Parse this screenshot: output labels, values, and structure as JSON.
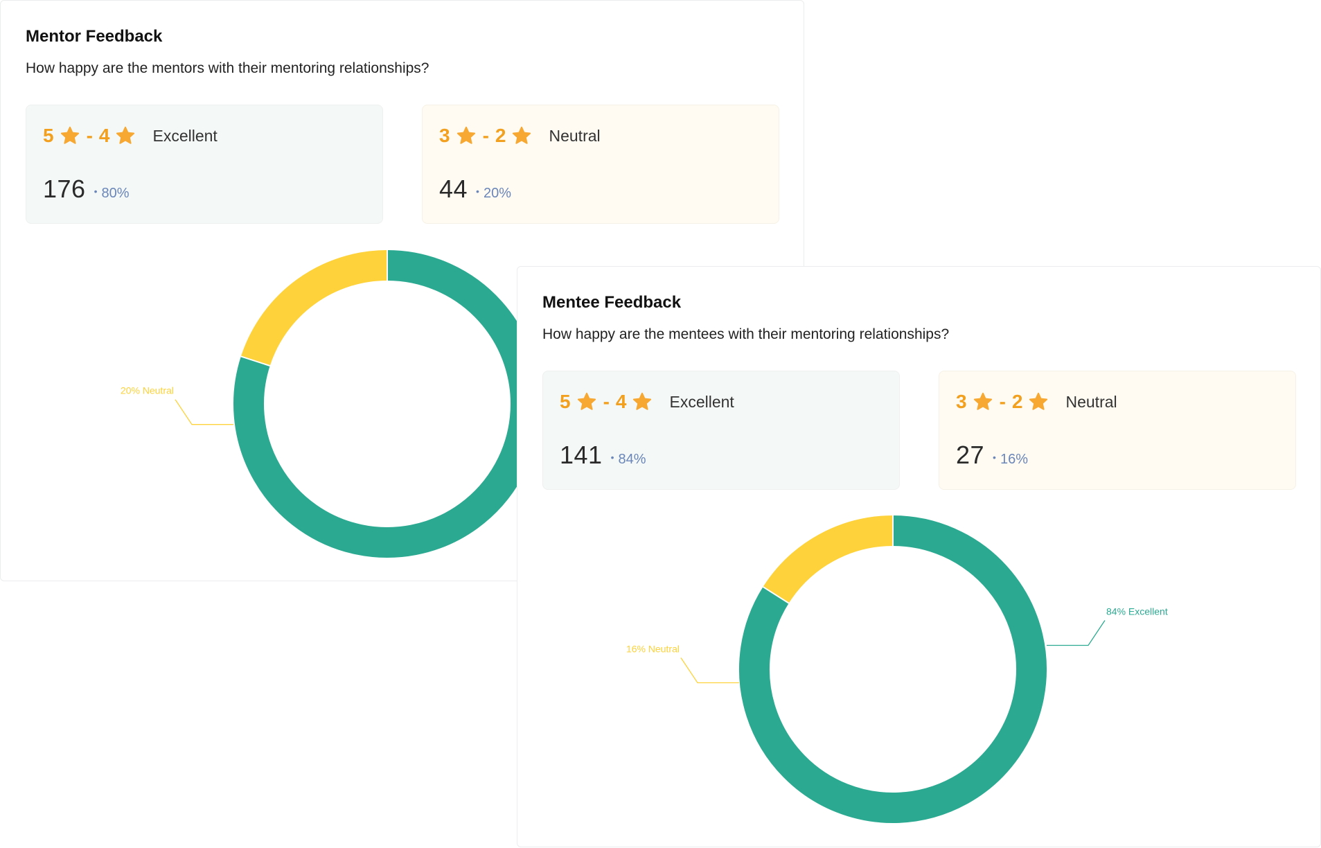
{
  "colors": {
    "excellent": "#2baa91",
    "neutral": "#fdd23a",
    "star": "#f7a832",
    "rating_text": "#f2a01f",
    "percent_text": "#6a86b8"
  },
  "mentor": {
    "title": "Mentor Feedback",
    "subtitle": "How happy are the mentors with their mentoring relationships?",
    "cards": [
      {
        "high": "5",
        "dash": "-",
        "low": "4",
        "label": "Excellent",
        "count": "176",
        "bullet": "•",
        "percent": "80%"
      },
      {
        "high": "3",
        "dash": "-",
        "low": "2",
        "label": "Neutral",
        "count": "44",
        "bullet": "•",
        "percent": "20%"
      }
    ]
  },
  "mentee": {
    "title": "Mentee Feedback",
    "subtitle": "How happy are the mentees with their mentoring relationships?",
    "cards": [
      {
        "high": "5",
        "dash": "-",
        "low": "4",
        "label": "Excellent",
        "count": "141",
        "bullet": "•",
        "percent": "84%"
      },
      {
        "high": "3",
        "dash": "-",
        "low": "2",
        "label": "Neutral",
        "count": "27",
        "bullet": "•",
        "percent": "16%"
      }
    ]
  },
  "chart_data": [
    {
      "type": "pie",
      "donut": true,
      "categories": [
        "Excellent",
        "Neutral"
      ],
      "values": [
        80,
        20
      ],
      "labels": [
        "",
        "20% Neutral"
      ]
    },
    {
      "type": "pie",
      "donut": true,
      "categories": [
        "Excellent",
        "Neutral"
      ],
      "values": [
        84,
        16
      ],
      "labels": [
        "84% Excellent",
        "16% Neutral"
      ]
    }
  ]
}
